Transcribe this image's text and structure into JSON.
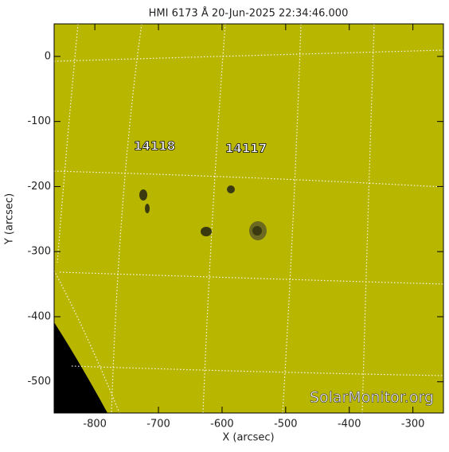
{
  "chart_data": {
    "type": "image",
    "title": "HMI 6173 Å 20-Jun-2025 22:34:46.000",
    "xlabel": "X (arcsec)",
    "ylabel": "Y (arcsec)",
    "xlim": [
      -864,
      -252
    ],
    "ylim": [
      -548,
      50
    ],
    "xticks": [
      -800,
      -700,
      -600,
      -500,
      -400,
      -300
    ],
    "yticks": [
      -500,
      -400,
      -300,
      -200,
      -100,
      0
    ],
    "annotations": [
      "14118",
      "14117"
    ],
    "watermark": "SolarMonitor.org"
  }
}
